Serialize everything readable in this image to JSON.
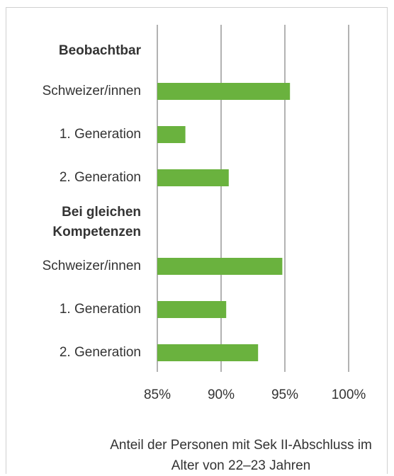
{
  "chart_data": {
    "type": "hbar",
    "groups": [
      {
        "name": "Beobachtbar",
        "categories": [
          "Schweizer/innen",
          "1. Generation",
          "2. Generation"
        ],
        "values": [
          95.4,
          87.2,
          90.6
        ]
      },
      {
        "name": "Bei gleichen Kompetenzen",
        "categories": [
          "Schweizer/innen",
          "1. Generation",
          "2. Generation"
        ],
        "values": [
          94.8,
          90.4,
          92.9
        ]
      }
    ],
    "color": "#6ab23e",
    "xlim": [
      85,
      100
    ],
    "xticks": [
      {
        "value": 85,
        "label": "85%"
      },
      {
        "value": 90,
        "label": "90%"
      },
      {
        "value": 95,
        "label": "95%"
      },
      {
        "value": 100,
        "label": "100%"
      }
    ],
    "grid": true,
    "x_label": "Anteil der Personen mit Sek II-Abschluss im Alter von 22–23 Jahren"
  }
}
